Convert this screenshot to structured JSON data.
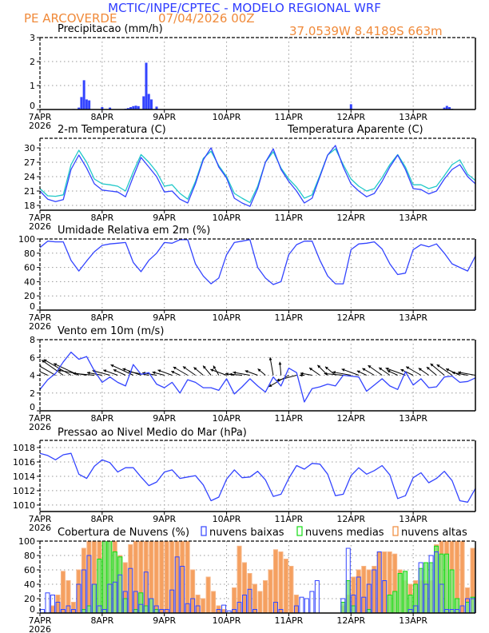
{
  "header": {
    "title": "MCTIC/INPE/CPTEC - MODELO REGIONAL WRF",
    "station": "PE ARCOVERDE",
    "run": "07/04/2026 00Z",
    "coords": "37.0539W 8.4189S 663m"
  },
  "colors": {
    "title": "#2f3cff",
    "orange": "#f08a3a",
    "blue": "#3344ff",
    "cyan": "#20c8c8",
    "green": "#11dd11",
    "cloud_high_fill": "#f5a060"
  },
  "day_labels": [
    "7APR",
    "8APR",
    "9APR",
    "10APR",
    "11APR",
    "12APR",
    "13APR"
  ],
  "year_label": "2026",
  "times_3h": [
    "2026-04-07T00",
    "2026-04-07T03",
    "2026-04-07T06",
    "2026-04-07T09",
    "2026-04-07T12",
    "2026-04-07T15",
    "2026-04-07T18",
    "2026-04-07T21",
    "2026-04-08T00",
    "2026-04-08T03",
    "2026-04-08T06",
    "2026-04-08T09",
    "2026-04-08T12",
    "2026-04-08T15",
    "2026-04-08T18",
    "2026-04-08T21",
    "2026-04-09T00",
    "2026-04-09T03",
    "2026-04-09T06",
    "2026-04-09T09",
    "2026-04-09T12",
    "2026-04-09T15",
    "2026-04-09T18",
    "2026-04-09T21",
    "2026-04-10T00",
    "2026-04-10T03",
    "2026-04-10T06",
    "2026-04-10T09",
    "2026-04-10T12",
    "2026-04-10T15",
    "2026-04-10T18",
    "2026-04-10T21",
    "2026-04-11T00",
    "2026-04-11T03",
    "2026-04-11T06",
    "2026-04-11T09",
    "2026-04-11T12",
    "2026-04-11T15",
    "2026-04-11T18",
    "2026-04-11T21",
    "2026-04-12T00",
    "2026-04-12T03",
    "2026-04-12T06",
    "2026-04-12T09",
    "2026-04-12T12",
    "2026-04-12T15",
    "2026-04-12T18",
    "2026-04-12T21",
    "2026-04-13T00",
    "2026-04-13T03",
    "2026-04-13T06",
    "2026-04-13T09",
    "2026-04-13T12",
    "2026-04-13T15",
    "2026-04-13T18",
    "2026-04-13T21",
    "2026-04-14T00"
  ],
  "times_2h": [
    "2026-04-07T00",
    "2026-04-07T02",
    "2026-04-07T04",
    "2026-04-07T06",
    "2026-04-07T08",
    "2026-04-07T10",
    "2026-04-07T12",
    "2026-04-07T14",
    "2026-04-07T16",
    "2026-04-07T18",
    "2026-04-07T20",
    "2026-04-07T22",
    "2026-04-08T00",
    "2026-04-08T02",
    "2026-04-08T04",
    "2026-04-08T06",
    "2026-04-08T08",
    "2026-04-08T10",
    "2026-04-08T12",
    "2026-04-08T14",
    "2026-04-08T16",
    "2026-04-08T18",
    "2026-04-08T20",
    "2026-04-08T22",
    "2026-04-09T00",
    "2026-04-09T02",
    "2026-04-09T04",
    "2026-04-09T06",
    "2026-04-09T08",
    "2026-04-09T10",
    "2026-04-09T12",
    "2026-04-09T14",
    "2026-04-09T16",
    "2026-04-09T18",
    "2026-04-09T20",
    "2026-04-09T22",
    "2026-04-10T00",
    "2026-04-10T02",
    "2026-04-10T04",
    "2026-04-10T06",
    "2026-04-10T08",
    "2026-04-10T10",
    "2026-04-10T12",
    "2026-04-10T14",
    "2026-04-10T16",
    "2026-04-10T18",
    "2026-04-10T20",
    "2026-04-10T22",
    "2026-04-11T00",
    "2026-04-11T02",
    "2026-04-11T04",
    "2026-04-11T06",
    "2026-04-11T08",
    "2026-04-11T10",
    "2026-04-11T12",
    "2026-04-11T14",
    "2026-04-11T16",
    "2026-04-11T18",
    "2026-04-11T20",
    "2026-04-11T22",
    "2026-04-12T00",
    "2026-04-12T02",
    "2026-04-12T04",
    "2026-04-12T06",
    "2026-04-12T08",
    "2026-04-12T10",
    "2026-04-12T12",
    "2026-04-12T14",
    "2026-04-12T16",
    "2026-04-12T18",
    "2026-04-12T20",
    "2026-04-12T22",
    "2026-04-13T00",
    "2026-04-13T02",
    "2026-04-13T04",
    "2026-04-13T06",
    "2026-04-13T08",
    "2026-04-13T10",
    "2026-04-13T12",
    "2026-04-13T14",
    "2026-04-13T16",
    "2026-04-13T18",
    "2026-04-13T20",
    "2026-04-13T22"
  ],
  "chart_data": [
    {
      "type": "bar",
      "title": "Precipitacao (mm/h)",
      "ylim": [
        0,
        3
      ],
      "yticks": [
        "0",
        "1",
        "2",
        "3"
      ],
      "grid": true,
      "points": [
        [
          "2026-04-07T13",
          0.02
        ],
        [
          "2026-04-07T15",
          0.08
        ],
        [
          "2026-04-07T16",
          0.52
        ],
        [
          "2026-04-07T17",
          1.22
        ],
        [
          "2026-04-07T18",
          0.42
        ],
        [
          "2026-04-07T19",
          0.38
        ],
        [
          "2026-04-08T00",
          0.1
        ],
        [
          "2026-04-08T03",
          0.08
        ],
        [
          "2026-04-08T09",
          0.03
        ],
        [
          "2026-04-08T10",
          0.06
        ],
        [
          "2026-04-08T11",
          0.1
        ],
        [
          "2026-04-08T12",
          0.14
        ],
        [
          "2026-04-08T13",
          0.16
        ],
        [
          "2026-04-08T14",
          0.14
        ],
        [
          "2026-04-08T16",
          0.55
        ],
        [
          "2026-04-08T17",
          1.95
        ],
        [
          "2026-04-08T18",
          0.65
        ],
        [
          "2026-04-08T19",
          0.42
        ],
        [
          "2026-04-08T21",
          0.12
        ],
        [
          "2026-04-12T00",
          0.22
        ],
        [
          "2026-04-12T01",
          0.02
        ],
        [
          "2026-04-12T20",
          0.01
        ],
        [
          "2026-04-13T12",
          0.08
        ],
        [
          "2026-04-13T13",
          0.15
        ],
        [
          "2026-04-13T14",
          0.1
        ],
        [
          "2026-04-13T15",
          0.03
        ],
        [
          "2026-04-13T18",
          0.01
        ],
        [
          "2026-04-13T19",
          0.01
        ],
        [
          "2026-04-13T20",
          0.01
        ]
      ]
    },
    {
      "type": "line",
      "title": "2-m Temperatura (C)",
      "ylim": [
        17,
        32
      ],
      "yticks": [
        "18",
        "21",
        "24",
        "27",
        "30"
      ],
      "grid": true,
      "series": [
        {
          "name": "Temperatura Aparente (C)",
          "color": "#20c8c8",
          "values": [
            21.5,
            20,
            19.9,
            20.2,
            26.5,
            29.5,
            27,
            23.5,
            22.5,
            22.3,
            22,
            21,
            25,
            28.6,
            27,
            25,
            22,
            22.3,
            20.5,
            19.3,
            23,
            27.8,
            29.3,
            26.3,
            24,
            20.5,
            19.5,
            18.6,
            22,
            27,
            29.2,
            25.8,
            23.5,
            21.8,
            19.5,
            20.2,
            24.3,
            28.5,
            29.8,
            26.5,
            23.5,
            22,
            21,
            21.5,
            23.8,
            26.5,
            28.6,
            26,
            22.3,
            22.3,
            21.5,
            22,
            24.2,
            26.5,
            27.5,
            24.5,
            23.2
          ]
        },
        {
          "color": "#3344ff",
          "values": [
            21,
            19.3,
            18.8,
            19.2,
            25.5,
            28.5,
            25.8,
            22.5,
            21.2,
            21,
            20.8,
            19.8,
            24,
            28,
            26,
            24,
            20.8,
            21,
            19.3,
            18.5,
            22.5,
            27.5,
            30,
            26,
            23.7,
            19.5,
            18.5,
            17.8,
            21.5,
            27,
            29.8,
            25.5,
            23,
            21,
            18.5,
            19.5,
            24,
            28.5,
            30.5,
            26,
            22.5,
            21,
            19.8,
            20.5,
            23,
            26,
            28.5,
            25.5,
            21.5,
            21.3,
            20.4,
            21,
            23.5,
            25.5,
            26.5,
            24,
            22.5
          ]
        }
      ]
    },
    {
      "type": "line",
      "title": "Umidade Relativa em 2m (%)",
      "ylim": [
        0,
        100
      ],
      "yticks": [
        "0",
        "20",
        "40",
        "60",
        "80",
        "100"
      ],
      "grid": true,
      "series": [
        {
          "color": "#3344ff",
          "values": [
            88,
            97,
            96,
            96,
            70,
            55,
            69,
            82,
            91,
            93,
            94,
            95,
            67,
            54,
            70,
            80,
            95,
            94,
            99,
            99,
            65,
            48,
            37,
            45,
            78,
            95,
            97,
            99,
            60,
            45,
            36,
            40,
            78,
            92,
            97,
            97,
            70,
            48,
            37,
            37,
            85,
            93,
            94,
            96,
            86,
            65,
            50,
            52,
            85,
            92,
            89,
            93,
            80,
            65,
            60,
            55,
            76
          ]
        }
      ]
    },
    {
      "type": "line",
      "title": "Vento em 10m (m/s)",
      "ylim": [
        0,
        8
      ],
      "yticks": [
        "0",
        "2",
        "4",
        "6",
        "8"
      ],
      "grid": true,
      "series": [
        {
          "color": "#3344ff",
          "values": [
            2.4,
            3.5,
            4.2,
            5.5,
            6.6,
            5.8,
            6.1,
            4.5,
            3.2,
            3.8,
            3.2,
            2.8,
            5.2,
            4.1,
            4.3,
            3.0,
            2.6,
            3.2,
            2.0,
            3.5,
            3.2,
            2.6,
            2.6,
            2.3,
            3.6,
            1.9,
            2.7,
            3.6,
            2.8,
            2.1,
            3.8,
            2.8,
            4.8,
            4.3,
            1.0,
            2.5,
            2.7,
            3.0,
            2.8,
            4.0,
            3.9,
            3.8,
            2.2,
            2.9,
            3.6,
            2.8,
            2.4,
            4.4,
            2.9,
            3.6,
            2.6,
            2.7,
            3.8,
            3.9,
            3.2,
            3.3,
            3.7
          ]
        }
      ],
      "vectors": {
        "baseline": 4,
        "color": "#000000",
        "direction_from_deg": [
          110,
          115,
          120,
          125,
          120,
          115,
          100,
          95,
          100,
          105,
          110,
          115,
          115,
          110,
          100,
          100,
          105,
          110,
          115,
          120,
          125,
          130,
          140,
          150,
          110,
          100,
          95,
          100,
          110,
          130,
          170,
          175,
          60,
          75,
          90,
          100,
          125,
          135,
          130,
          95,
          100,
          110,
          115,
          120,
          125,
          125,
          115,
          110,
          115,
          120,
          125,
          130,
          130,
          125,
          115,
          100,
          100
        ]
      }
    },
    {
      "type": "line",
      "title": "Pressao ao Nivel Medio do Mar (hPa)",
      "ylim": [
        1009.1,
        1019
      ],
      "yticks": [
        "1010",
        "1012",
        "1014",
        "1016",
        "1018"
      ],
      "grid": true,
      "series": [
        {
          "color": "#3344ff",
          "values": [
            1017.2,
            1016.9,
            1016.3,
            1017.0,
            1017.2,
            1014.3,
            1013.7,
            1015.4,
            1016.3,
            1015.9,
            1014.6,
            1015.2,
            1015.2,
            1013.9,
            1012.7,
            1013.2,
            1014.6,
            1014.9,
            1013.7,
            1013.9,
            1014.1,
            1012.8,
            1010.6,
            1011.1,
            1013.6,
            1014.9,
            1013.8,
            1013.9,
            1014.7,
            1013.5,
            1011.2,
            1011.5,
            1013.7,
            1015.5,
            1015.0,
            1015.8,
            1015.7,
            1014.3,
            1011.3,
            1011.5,
            1014.1,
            1015.2,
            1014.3,
            1014.8,
            1015.5,
            1014.2,
            1010.9,
            1011.3,
            1013.8,
            1014.5,
            1013.1,
            1013.7,
            1014.7,
            1013.4,
            1010.6,
            1010.4,
            1012.3
          ]
        }
      ]
    },
    {
      "type": "bar",
      "title": "Cobertura de Nuvens (%)",
      "ylim": [
        0,
        100
      ],
      "yticks": [
        "0",
        "20",
        "40",
        "60",
        "80",
        "100"
      ],
      "grid": true,
      "legend": "top",
      "series": [
        {
          "name": "nuvens altas",
          "color": "#f08a3a",
          "values": [
            0,
            0,
            10,
            25,
            58,
            45,
            15,
            60,
            90,
            100,
            100,
            100,
            100,
            100,
            100,
            80,
            70,
            95,
            100,
            100,
            100,
            100,
            100,
            100,
            100,
            100,
            100,
            100,
            100,
            60,
            25,
            20,
            50,
            30,
            10,
            5,
            0,
            35,
            93,
            70,
            55,
            40,
            30,
            45,
            60,
            88,
            85,
            75,
            65,
            25,
            0,
            0,
            0,
            0,
            0,
            0,
            0,
            0,
            10,
            25,
            50,
            60,
            65,
            60,
            65,
            85,
            85,
            85,
            82,
            60,
            45,
            40,
            45,
            45,
            45,
            45,
            95,
            100,
            100,
            100,
            100,
            100,
            35,
            90
          ]
        },
        {
          "name": "nuvens medias",
          "color": "#11dd11",
          "values": [
            0,
            0,
            0,
            0,
            0,
            0,
            0,
            0,
            5,
            10,
            40,
            75,
            100,
            100,
            85,
            78,
            20,
            0,
            5,
            28,
            10,
            20,
            5,
            0,
            0,
            0,
            0,
            0,
            0,
            0,
            0,
            0,
            0,
            0,
            0,
            0,
            0,
            0,
            0,
            0,
            0,
            0,
            0,
            0,
            0,
            0,
            0,
            0,
            0,
            0,
            0,
            0,
            0,
            0,
            0,
            0,
            0,
            0,
            15,
            45,
            10,
            0,
            0,
            5,
            0,
            0,
            0,
            25,
            30,
            55,
            58,
            25,
            40,
            62,
            70,
            70,
            93,
            82,
            82,
            60,
            20,
            0,
            15,
            22
          ]
        },
        {
          "name": "nuvens baixas",
          "color": "#3344ff",
          "values": [
            5,
            28,
            25,
            15,
            5,
            10,
            5,
            40,
            60,
            80,
            40,
            10,
            5,
            40,
            43,
            53,
            30,
            62,
            30,
            12,
            57,
            20,
            10,
            5,
            5,
            32,
            78,
            65,
            13,
            20,
            10,
            0,
            0,
            0,
            5,
            11,
            3,
            5,
            15,
            25,
            33,
            5,
            0,
            0,
            0,
            15,
            5,
            0,
            0,
            10,
            22,
            20,
            30,
            45,
            0,
            0,
            0,
            0,
            20,
            90,
            25,
            50,
            22,
            40,
            60,
            85,
            45,
            0,
            0,
            0,
            0,
            5,
            10,
            70,
            40,
            80,
            85,
            40,
            5,
            5,
            5,
            10,
            20,
            20
          ]
        }
      ]
    }
  ]
}
